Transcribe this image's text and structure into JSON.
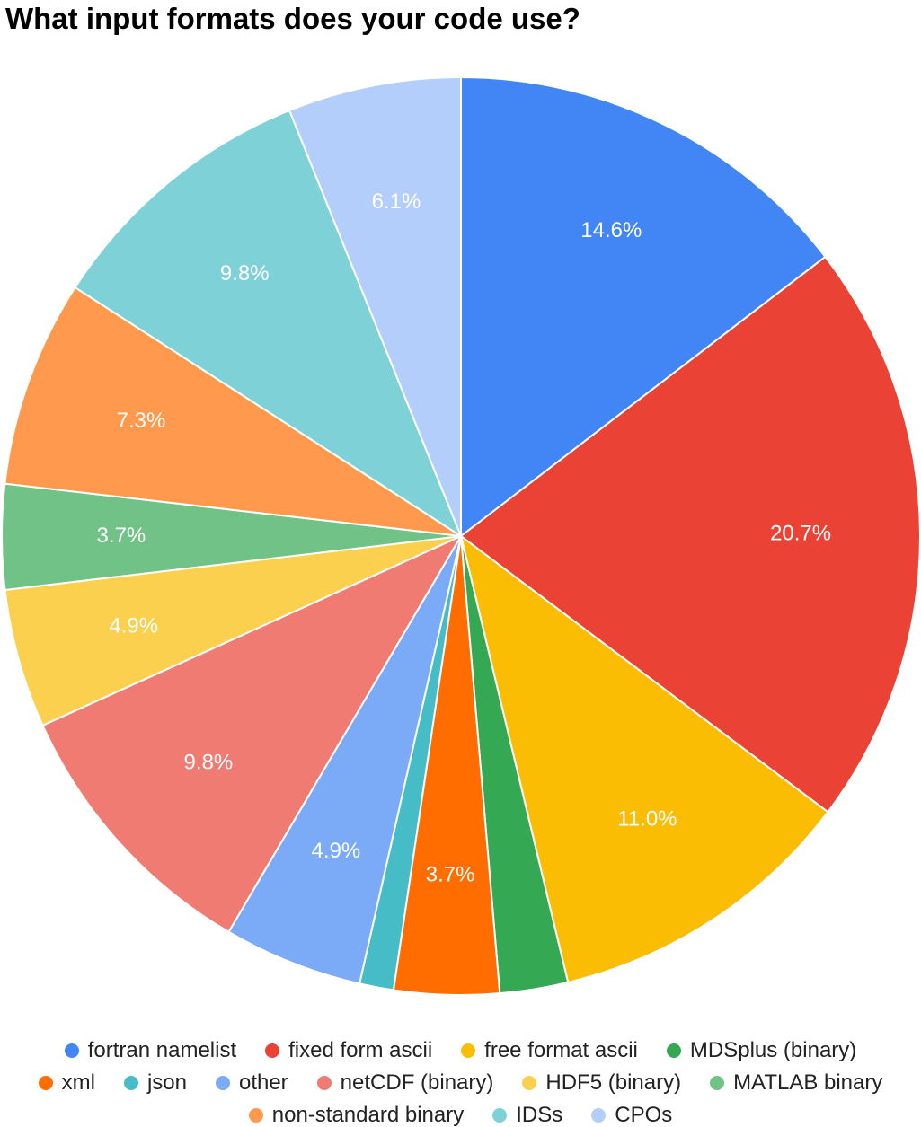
{
  "chart_data": {
    "type": "pie",
    "title": "What input formats does your code use?",
    "slices": [
      {
        "label": "fortran namelist",
        "value": 14.6,
        "value_label": "14.6%",
        "color": "#4285F4"
      },
      {
        "label": "fixed form ascii",
        "value": 20.7,
        "value_label": "20.7%",
        "color": "#EA4335"
      },
      {
        "label": "free format ascii",
        "value": 11.0,
        "value_label": "11.0%",
        "color": "#FBBC04"
      },
      {
        "label": "MDSplus (binary)",
        "value": 2.4,
        "value_label": "",
        "color": "#34A853"
      },
      {
        "label": "xml",
        "value": 3.7,
        "value_label": "3.7%",
        "color": "#FF6D01"
      },
      {
        "label": "json",
        "value": 1.2,
        "value_label": "",
        "color": "#46BDC6"
      },
      {
        "label": "other",
        "value": 4.9,
        "value_label": "4.9%",
        "color": "#7BAAF7"
      },
      {
        "label": "netCDF (binary)",
        "value": 9.8,
        "value_label": "9.8%",
        "color": "#F07B72"
      },
      {
        "label": "HDF5 (binary)",
        "value": 4.9,
        "value_label": "4.9%",
        "color": "#FCD04F"
      },
      {
        "label": "MATLAB binary",
        "value": 3.7,
        "value_label": "3.7%",
        "color": "#71C287"
      },
      {
        "label": "non-standard binary",
        "value": 7.3,
        "value_label": "7.3%",
        "color": "#FF994D"
      },
      {
        "label": "IDSs",
        "value": 9.8,
        "value_label": "9.8%",
        "color": "#7ED1D7"
      },
      {
        "label": "CPOs",
        "value": 6.1,
        "value_label": "6.1%",
        "color": "#B3CEFB"
      }
    ],
    "legend_placement": "bottom",
    "legend_rows": [
      [
        "fortran namelist",
        "fixed form ascii",
        "free format ascii",
        "MDSplus (binary)"
      ],
      [
        "xml",
        "json",
        "other",
        "netCDF (binary)",
        "HDF5 (binary)",
        "MATLAB binary"
      ],
      [
        "non-standard binary",
        "IDSs",
        "CPOs"
      ]
    ]
  }
}
